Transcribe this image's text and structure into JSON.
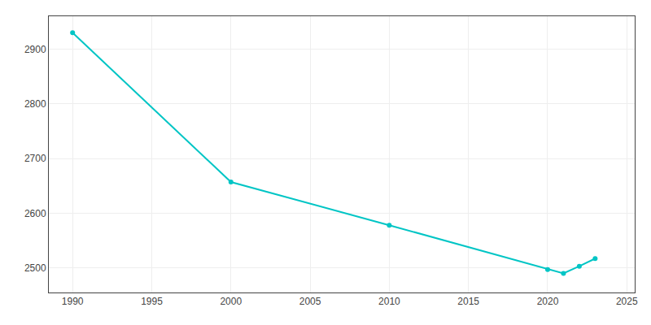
{
  "chart_data": {
    "type": "line",
    "x": [
      1990,
      2000,
      2010,
      2020,
      2021,
      2022,
      2023
    ],
    "values": [
      2930,
      2657,
      2578,
      2497,
      2490,
      2503,
      2517
    ],
    "color": "#00C5C5",
    "marker": "circle",
    "xlim": [
      1988.5,
      2025.5
    ],
    "xticks": [
      1990,
      1995,
      2000,
      2005,
      2010,
      2015,
      2020,
      2025
    ],
    "ylim": [
      2455,
      2960
    ],
    "yticks": [
      2500,
      2600,
      2700,
      2800,
      2900
    ],
    "grid": true
  }
}
